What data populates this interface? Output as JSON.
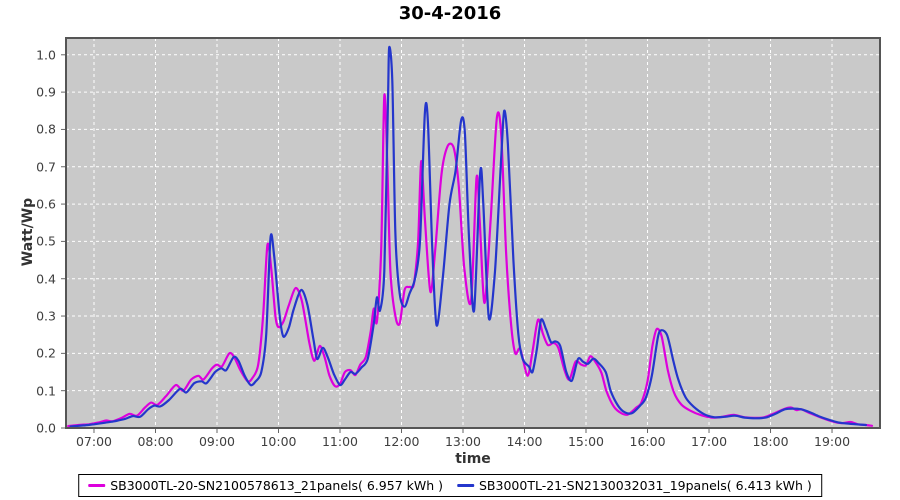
{
  "window": {
    "title": "30-4-2016"
  },
  "chart_data": {
    "type": "line",
    "title": "30-4-2016",
    "xlabel": "time",
    "ylabel": "Watt/Wp",
    "xlim": [
      6.545,
      19.78
    ],
    "ylim": [
      0,
      1.045
    ],
    "grid": {
      "shown": true,
      "color": "#ffffff",
      "style": "dashed"
    },
    "plot_background": "#c9c9c9",
    "plot_border_color": "#555555",
    "legend_position": "bottom",
    "xtick_values": [
      7,
      8,
      9,
      10,
      11,
      12,
      13,
      14,
      15,
      16,
      17,
      18,
      19
    ],
    "xtick_labels": [
      "07:00",
      "08:00",
      "09:00",
      "10:00",
      "11:00",
      "12:00",
      "13:00",
      "14:00",
      "15:00",
      "16:00",
      "17:00",
      "18:00",
      "19:00"
    ],
    "ytick_values": [
      0.0,
      0.1,
      0.2,
      0.3,
      0.4,
      0.5,
      0.6,
      0.7,
      0.8,
      0.9,
      1.0
    ],
    "ytick_labels": [
      "0.0",
      "0.1",
      "0.2",
      "0.3",
      "0.4",
      "0.5",
      "0.6",
      "0.7",
      "0.8",
      "0.9",
      "1.0"
    ],
    "series": [
      {
        "name": "SB3000TL-20-SN2100578613_21panels( 6.957 kWh )",
        "color": "#dd00dd",
        "daily_energy_kwh": 6.957,
        "points": [
          [
            6.58,
            0.005
          ],
          [
            6.75,
            0.008
          ],
          [
            6.92,
            0.01
          ],
          [
            7.08,
            0.015
          ],
          [
            7.2,
            0.02
          ],
          [
            7.3,
            0.018
          ],
          [
            7.45,
            0.027
          ],
          [
            7.58,
            0.038
          ],
          [
            7.7,
            0.033
          ],
          [
            7.83,
            0.055
          ],
          [
            7.93,
            0.068
          ],
          [
            8.03,
            0.062
          ],
          [
            8.17,
            0.085
          ],
          [
            8.33,
            0.115
          ],
          [
            8.45,
            0.1
          ],
          [
            8.58,
            0.13
          ],
          [
            8.7,
            0.14
          ],
          [
            8.78,
            0.13
          ],
          [
            8.92,
            0.16
          ],
          [
            9.0,
            0.17
          ],
          [
            9.08,
            0.165
          ],
          [
            9.2,
            0.2
          ],
          [
            9.28,
            0.19
          ],
          [
            9.38,
            0.155
          ],
          [
            9.5,
            0.125
          ],
          [
            9.58,
            0.135
          ],
          [
            9.67,
            0.17
          ],
          [
            9.75,
            0.3
          ],
          [
            9.82,
            0.49
          ],
          [
            9.88,
            0.43
          ],
          [
            9.95,
            0.3
          ],
          [
            10.0,
            0.27
          ],
          [
            10.08,
            0.285
          ],
          [
            10.17,
            0.33
          ],
          [
            10.28,
            0.375
          ],
          [
            10.38,
            0.34
          ],
          [
            10.5,
            0.23
          ],
          [
            10.58,
            0.18
          ],
          [
            10.67,
            0.22
          ],
          [
            10.75,
            0.19
          ],
          [
            10.83,
            0.14
          ],
          [
            10.92,
            0.112
          ],
          [
            11.0,
            0.118
          ],
          [
            11.08,
            0.15
          ],
          [
            11.17,
            0.155
          ],
          [
            11.25,
            0.142
          ],
          [
            11.33,
            0.17
          ],
          [
            11.42,
            0.19
          ],
          [
            11.5,
            0.26
          ],
          [
            11.55,
            0.32
          ],
          [
            11.6,
            0.285
          ],
          [
            11.67,
            0.48
          ],
          [
            11.72,
            0.89
          ],
          [
            11.77,
            0.7
          ],
          [
            11.82,
            0.42
          ],
          [
            11.9,
            0.3
          ],
          [
            11.97,
            0.28
          ],
          [
            12.05,
            0.37
          ],
          [
            12.13,
            0.378
          ],
          [
            12.2,
            0.385
          ],
          [
            12.27,
            0.5
          ],
          [
            12.32,
            0.715
          ],
          [
            12.38,
            0.56
          ],
          [
            12.47,
            0.365
          ],
          [
            12.55,
            0.48
          ],
          [
            12.65,
            0.68
          ],
          [
            12.75,
            0.755
          ],
          [
            12.85,
            0.75
          ],
          [
            12.93,
            0.65
          ],
          [
            13.02,
            0.43
          ],
          [
            13.13,
            0.34
          ],
          [
            13.22,
            0.67
          ],
          [
            13.27,
            0.56
          ],
          [
            13.35,
            0.335
          ],
          [
            13.45,
            0.56
          ],
          [
            13.55,
            0.83
          ],
          [
            13.62,
            0.79
          ],
          [
            13.7,
            0.47
          ],
          [
            13.78,
            0.28
          ],
          [
            13.85,
            0.2
          ],
          [
            13.93,
            0.212
          ],
          [
            14.05,
            0.14
          ],
          [
            14.13,
            0.205
          ],
          [
            14.22,
            0.29
          ],
          [
            14.3,
            0.252
          ],
          [
            14.38,
            0.222
          ],
          [
            14.47,
            0.228
          ],
          [
            14.55,
            0.215
          ],
          [
            14.65,
            0.155
          ],
          [
            14.73,
            0.13
          ],
          [
            14.83,
            0.178
          ],
          [
            14.92,
            0.17
          ],
          [
            15.0,
            0.168
          ],
          [
            15.07,
            0.192
          ],
          [
            15.15,
            0.178
          ],
          [
            15.25,
            0.148
          ],
          [
            15.33,
            0.1
          ],
          [
            15.45,
            0.058
          ],
          [
            15.57,
            0.04
          ],
          [
            15.68,
            0.036
          ],
          [
            15.82,
            0.055
          ],
          [
            15.9,
            0.068
          ],
          [
            16.0,
            0.125
          ],
          [
            16.08,
            0.22
          ],
          [
            16.15,
            0.265
          ],
          [
            16.23,
            0.245
          ],
          [
            16.33,
            0.155
          ],
          [
            16.43,
            0.095
          ],
          [
            16.55,
            0.063
          ],
          [
            16.7,
            0.046
          ],
          [
            16.88,
            0.034
          ],
          [
            17.05,
            0.028
          ],
          [
            17.22,
            0.03
          ],
          [
            17.4,
            0.035
          ],
          [
            17.57,
            0.029
          ],
          [
            17.73,
            0.027
          ],
          [
            17.9,
            0.029
          ],
          [
            18.07,
            0.04
          ],
          [
            18.22,
            0.051
          ],
          [
            18.33,
            0.055
          ],
          [
            18.42,
            0.048
          ],
          [
            18.5,
            0.05
          ],
          [
            18.65,
            0.039
          ],
          [
            18.82,
            0.028
          ],
          [
            19.0,
            0.018
          ],
          [
            19.15,
            0.013
          ],
          [
            19.3,
            0.016
          ],
          [
            19.42,
            0.01
          ],
          [
            19.55,
            0.008
          ],
          [
            19.65,
            0.006
          ]
        ]
      },
      {
        "name": "SB3000TL-21-SN2130032031_19panels( 6.413 kWh )",
        "color": "#2436cc",
        "daily_energy_kwh": 6.413,
        "points": [
          [
            6.62,
            0.004
          ],
          [
            6.83,
            0.007
          ],
          [
            7.0,
            0.01
          ],
          [
            7.17,
            0.014
          ],
          [
            7.33,
            0.018
          ],
          [
            7.5,
            0.024
          ],
          [
            7.63,
            0.032
          ],
          [
            7.75,
            0.03
          ],
          [
            7.88,
            0.05
          ],
          [
            7.98,
            0.06
          ],
          [
            8.08,
            0.058
          ],
          [
            8.22,
            0.075
          ],
          [
            8.4,
            0.105
          ],
          [
            8.5,
            0.095
          ],
          [
            8.63,
            0.12
          ],
          [
            8.75,
            0.125
          ],
          [
            8.83,
            0.12
          ],
          [
            8.97,
            0.15
          ],
          [
            9.07,
            0.16
          ],
          [
            9.15,
            0.155
          ],
          [
            9.27,
            0.19
          ],
          [
            9.35,
            0.18
          ],
          [
            9.45,
            0.14
          ],
          [
            9.55,
            0.115
          ],
          [
            9.63,
            0.125
          ],
          [
            9.72,
            0.15
          ],
          [
            9.8,
            0.25
          ],
          [
            9.87,
            0.51
          ],
          [
            9.93,
            0.46
          ],
          [
            10.02,
            0.3
          ],
          [
            10.08,
            0.245
          ],
          [
            10.17,
            0.27
          ],
          [
            10.25,
            0.32
          ],
          [
            10.37,
            0.37
          ],
          [
            10.47,
            0.33
          ],
          [
            10.57,
            0.235
          ],
          [
            10.63,
            0.185
          ],
          [
            10.72,
            0.215
          ],
          [
            10.8,
            0.19
          ],
          [
            10.9,
            0.145
          ],
          [
            11.0,
            0.115
          ],
          [
            11.08,
            0.13
          ],
          [
            11.17,
            0.15
          ],
          [
            11.25,
            0.145
          ],
          [
            11.35,
            0.162
          ],
          [
            11.45,
            0.185
          ],
          [
            11.55,
            0.28
          ],
          [
            11.6,
            0.35
          ],
          [
            11.65,
            0.315
          ],
          [
            11.72,
            0.42
          ],
          [
            11.78,
            0.88
          ],
          [
            11.8,
            1.02
          ],
          [
            11.85,
            0.93
          ],
          [
            11.9,
            0.52
          ],
          [
            11.97,
            0.36
          ],
          [
            12.05,
            0.325
          ],
          [
            12.13,
            0.36
          ],
          [
            12.22,
            0.4
          ],
          [
            12.3,
            0.5
          ],
          [
            12.38,
            0.845
          ],
          [
            12.43,
            0.82
          ],
          [
            12.5,
            0.48
          ],
          [
            12.57,
            0.275
          ],
          [
            12.67,
            0.4
          ],
          [
            12.78,
            0.6
          ],
          [
            12.88,
            0.69
          ],
          [
            12.97,
            0.825
          ],
          [
            13.03,
            0.79
          ],
          [
            13.1,
            0.5
          ],
          [
            13.18,
            0.315
          ],
          [
            13.28,
            0.685
          ],
          [
            13.33,
            0.6
          ],
          [
            13.42,
            0.295
          ],
          [
            13.52,
            0.42
          ],
          [
            13.62,
            0.72
          ],
          [
            13.67,
            0.85
          ],
          [
            13.73,
            0.76
          ],
          [
            13.82,
            0.45
          ],
          [
            13.9,
            0.25
          ],
          [
            13.97,
            0.185
          ],
          [
            14.07,
            0.165
          ],
          [
            14.13,
            0.15
          ],
          [
            14.2,
            0.21
          ],
          [
            14.27,
            0.29
          ],
          [
            14.35,
            0.265
          ],
          [
            14.43,
            0.23
          ],
          [
            14.5,
            0.232
          ],
          [
            14.58,
            0.22
          ],
          [
            14.68,
            0.15
          ],
          [
            14.77,
            0.127
          ],
          [
            14.87,
            0.185
          ],
          [
            14.95,
            0.178
          ],
          [
            15.03,
            0.172
          ],
          [
            15.12,
            0.186
          ],
          [
            15.2,
            0.175
          ],
          [
            15.32,
            0.15
          ],
          [
            15.4,
            0.1
          ],
          [
            15.52,
            0.06
          ],
          [
            15.63,
            0.042
          ],
          [
            15.75,
            0.04
          ],
          [
            15.88,
            0.06
          ],
          [
            15.97,
            0.08
          ],
          [
            16.07,
            0.14
          ],
          [
            16.17,
            0.245
          ],
          [
            16.23,
            0.262
          ],
          [
            16.32,
            0.248
          ],
          [
            16.42,
            0.18
          ],
          [
            16.5,
            0.13
          ],
          [
            16.62,
            0.082
          ],
          [
            16.75,
            0.057
          ],
          [
            16.92,
            0.037
          ],
          [
            17.08,
            0.029
          ],
          [
            17.25,
            0.03
          ],
          [
            17.42,
            0.033
          ],
          [
            17.58,
            0.028
          ],
          [
            17.75,
            0.026
          ],
          [
            17.92,
            0.028
          ],
          [
            18.08,
            0.038
          ],
          [
            18.23,
            0.05
          ],
          [
            18.37,
            0.052
          ],
          [
            18.5,
            0.05
          ],
          [
            18.63,
            0.043
          ],
          [
            18.78,
            0.032
          ],
          [
            18.95,
            0.022
          ],
          [
            19.1,
            0.015
          ],
          [
            19.25,
            0.012
          ],
          [
            19.4,
            0.01
          ],
          [
            19.55,
            0.008
          ]
        ]
      }
    ]
  }
}
